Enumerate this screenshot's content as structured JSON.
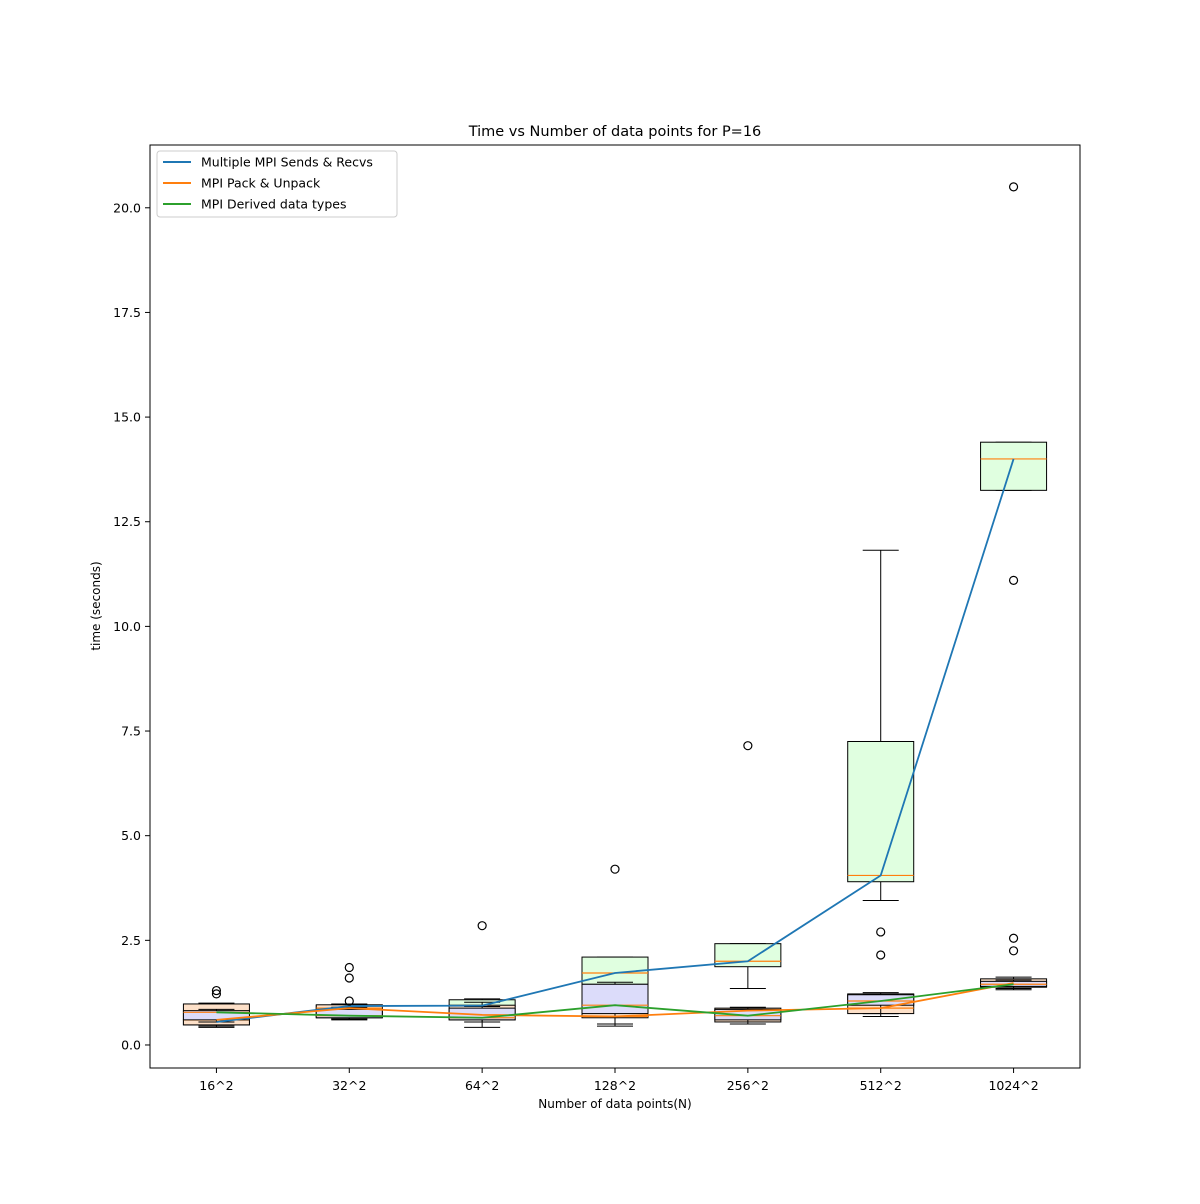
{
  "chart_data": {
    "type": "box",
    "title": "Time vs Number of data points for P=16",
    "xlabel": "Number of data points(N)",
    "ylabel": "time (seconds)",
    "categories": [
      "16^2",
      "32^2",
      "64^2",
      "128^2",
      "256^2",
      "512^2",
      "1024^2"
    ],
    "ylim": [
      -0.55,
      21.5
    ],
    "yticks": [
      0.0,
      2.5,
      5.0,
      7.5,
      10.0,
      12.5,
      15.0,
      17.5,
      20.0
    ],
    "ytick_labels": [
      "0.0",
      "2.5",
      "5.0",
      "7.5",
      "10.0",
      "12.5",
      "15.0",
      "17.5",
      "20.0"
    ],
    "grid": false,
    "legend_position": "top-left",
    "series": [
      {
        "name": "Multiple MPI Sends & Recvs",
        "line_color": "#1f77b4",
        "box_fill": "#e0ffe0",
        "values": [
          0.55,
          0.93,
          0.94,
          1.72,
          2.0,
          4.05,
          14.0
        ],
        "boxes": [
          {
            "whisker_low": 0.45,
            "q1": 0.48,
            "median": 0.55,
            "q3": 0.6,
            "whisker_high": 0.62,
            "outliers": []
          },
          {
            "whisker_low": 0.62,
            "q1": 0.65,
            "median": 0.93,
            "q3": 0.95,
            "whisker_high": 0.97,
            "outliers": [
              1.05,
              1.6,
              1.85
            ]
          },
          {
            "whisker_low": 0.9,
            "q1": 0.92,
            "median": 0.94,
            "q3": 1.08,
            "whisker_high": 1.1,
            "outliers": [
              2.85
            ]
          },
          {
            "whisker_low": 1.45,
            "q1": 1.45,
            "median": 1.72,
            "q3": 2.1,
            "whisker_high": 2.1,
            "outliers": [
              4.2
            ]
          },
          {
            "whisker_low": 1.35,
            "q1": 1.87,
            "median": 2.0,
            "q3": 2.42,
            "whisker_high": 2.42,
            "outliers": [
              7.15
            ]
          },
          {
            "whisker_low": 3.45,
            "q1": 3.9,
            "median": 4.05,
            "q3": 7.25,
            "whisker_high": 11.82,
            "outliers": [
              2.15,
              2.7
            ]
          },
          {
            "whisker_low": 13.25,
            "q1": 13.25,
            "median": 14.0,
            "q3": 14.4,
            "whisker_high": 14.4,
            "outliers": [
              11.1,
              20.5
            ]
          }
        ]
      },
      {
        "name": "MPI Pack & Unpack",
        "line_color": "#ff7f0e",
        "box_fill": "#fde0c8",
        "values": [
          0.6,
          0.88,
          0.72,
          0.68,
          0.82,
          0.88,
          1.48
        ],
        "boxes": [
          {
            "whisker_low": 0.42,
            "q1": 0.48,
            "median": 0.6,
            "q3": 0.98,
            "whisker_high": 1.0,
            "outliers": [
              1.22,
              1.3
            ]
          },
          {
            "whisker_low": 0.62,
            "q1": 0.68,
            "median": 0.88,
            "q3": 0.96,
            "whisker_high": 0.98,
            "outliers": []
          },
          {
            "whisker_low": 0.42,
            "q1": 0.6,
            "median": 0.72,
            "q3": 0.95,
            "whisker_high": 1.02,
            "outliers": []
          },
          {
            "whisker_low": 0.45,
            "q1": 0.65,
            "median": 0.68,
            "q3": 1.0,
            "whisker_high": 1.05,
            "outliers": []
          },
          {
            "whisker_low": 0.5,
            "q1": 0.55,
            "median": 0.82,
            "q3": 0.88,
            "whisker_high": 0.9,
            "outliers": []
          },
          {
            "whisker_low": 0.68,
            "q1": 0.75,
            "median": 0.88,
            "q3": 1.22,
            "whisker_high": 1.25,
            "outliers": []
          },
          {
            "whisker_low": 1.32,
            "q1": 1.38,
            "median": 1.48,
            "q3": 1.58,
            "whisker_high": 1.62,
            "outliers": [
              2.25,
              2.55
            ]
          }
        ]
      },
      {
        "name": "MPI Derived data types",
        "line_color": "#2ca02c",
        "box_fill": "#dcdcfa",
        "values": [
          0.78,
          0.7,
          0.65,
          0.95,
          0.7,
          1.05,
          1.45
        ],
        "boxes": [
          {
            "whisker_low": 0.55,
            "q1": 0.6,
            "median": 0.78,
            "q3": 0.82,
            "whisker_high": 0.85,
            "outliers": []
          },
          {
            "whisker_low": 0.6,
            "q1": 0.65,
            "median": 0.7,
            "q3": 0.85,
            "whisker_high": 0.9,
            "outliers": []
          },
          {
            "whisker_low": 0.55,
            "q1": 0.6,
            "median": 0.65,
            "q3": 0.88,
            "whisker_high": 0.92,
            "outliers": []
          },
          {
            "whisker_low": 0.5,
            "q1": 0.75,
            "median": 0.95,
            "q3": 1.45,
            "whisker_high": 1.5,
            "outliers": []
          },
          {
            "whisker_low": 0.55,
            "q1": 0.6,
            "median": 0.7,
            "q3": 0.85,
            "whisker_high": 0.88,
            "outliers": []
          },
          {
            "whisker_low": 0.75,
            "q1": 0.95,
            "median": 1.05,
            "q3": 1.2,
            "whisker_high": 1.22,
            "outliers": []
          },
          {
            "whisker_low": 1.35,
            "q1": 1.4,
            "median": 1.45,
            "q3": 1.52,
            "whisker_high": 1.55,
            "outliers": []
          }
        ]
      }
    ]
  }
}
